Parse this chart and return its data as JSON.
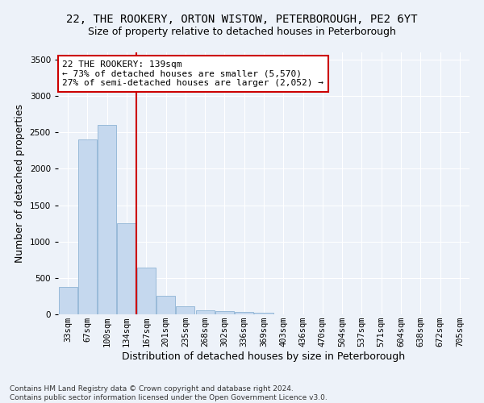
{
  "title1": "22, THE ROOKERY, ORTON WISTOW, PETERBOROUGH, PE2 6YT",
  "title2": "Size of property relative to detached houses in Peterborough",
  "xlabel": "Distribution of detached houses by size in Peterborough",
  "ylabel": "Number of detached properties",
  "footnote": "Contains HM Land Registry data © Crown copyright and database right 2024.\nContains public sector information licensed under the Open Government Licence v3.0.",
  "bar_labels": [
    "33sqm",
    "67sqm",
    "100sqm",
    "134sqm",
    "167sqm",
    "201sqm",
    "235sqm",
    "268sqm",
    "302sqm",
    "336sqm",
    "369sqm",
    "403sqm",
    "436sqm",
    "470sqm",
    "504sqm",
    "537sqm",
    "571sqm",
    "604sqm",
    "638sqm",
    "672sqm",
    "705sqm"
  ],
  "bar_values": [
    380,
    2400,
    2600,
    1250,
    640,
    250,
    110,
    60,
    45,
    30,
    25,
    0,
    0,
    0,
    0,
    0,
    0,
    0,
    0,
    0,
    0
  ],
  "bar_color": "#c5d8ee",
  "bar_edge_color": "#8eb4d4",
  "vline_color": "#cc0000",
  "annotation_text": "22 THE ROOKERY: 139sqm\n← 73% of detached houses are smaller (5,570)\n27% of semi-detached houses are larger (2,052) →",
  "annotation_box_color": "#ffffff",
  "annotation_box_edge": "#cc0000",
  "ylim": [
    0,
    3600
  ],
  "background_color": "#edf2f9",
  "plot_bg_color": "#edf2f9",
  "grid_color": "#ffffff",
  "title1_fontsize": 10,
  "title2_fontsize": 9,
  "annotation_fontsize": 8,
  "xlabel_fontsize": 9,
  "ylabel_fontsize": 9,
  "tick_fontsize": 7.5,
  "footnote_fontsize": 6.5
}
